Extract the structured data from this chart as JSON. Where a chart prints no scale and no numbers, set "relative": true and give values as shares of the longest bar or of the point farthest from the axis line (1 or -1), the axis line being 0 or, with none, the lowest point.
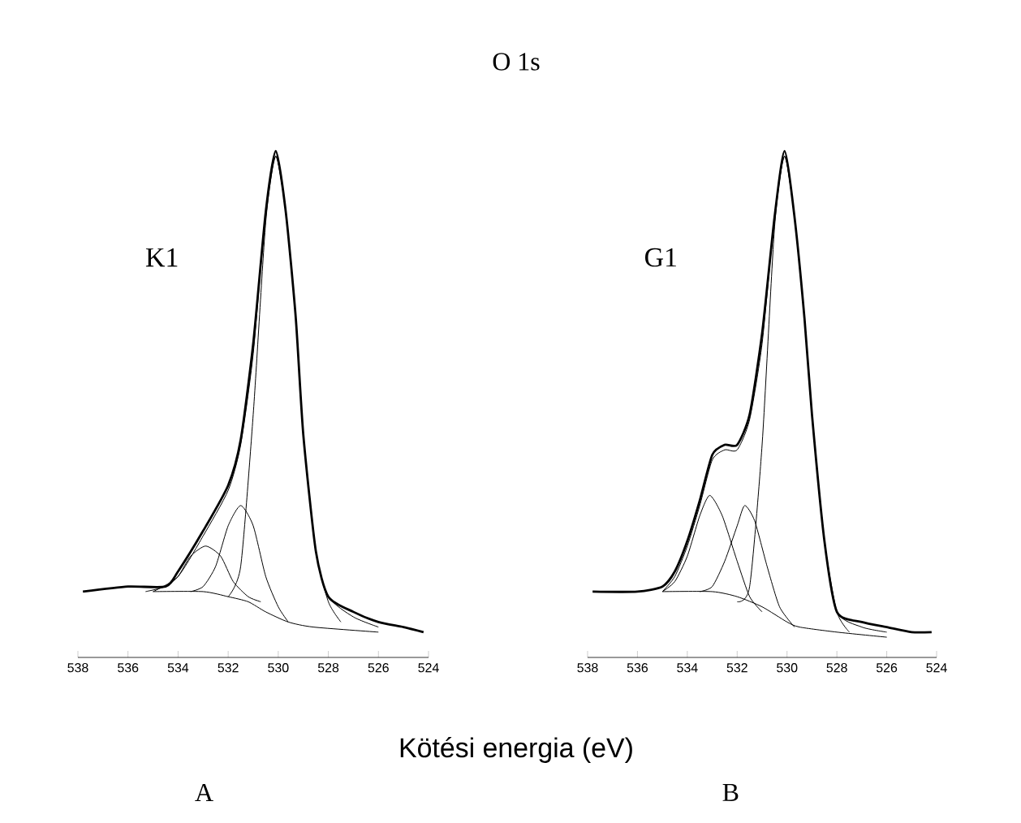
{
  "chart_data": [
    {
      "type": "line",
      "grid": false,
      "annotations": [
        "K1",
        "A"
      ],
      "relative": true,
      "tick_labels": "x",
      "xlim": [
        538,
        524
      ],
      "xticks": [
        538,
        536,
        534,
        532,
        530,
        528,
        526,
        524
      ],
      "series": [
        {
          "color": "#000000",
          "x": [
            537.8,
            536,
            534.5,
            534,
            533,
            532,
            531.5,
            531,
            530.5,
            530.1,
            529.7,
            529.3,
            529,
            528.5,
            528,
            527,
            526,
            525,
            524.2
          ],
          "values": [
            0.13,
            0.14,
            0.14,
            0.17,
            0.25,
            0.34,
            0.43,
            0.62,
            0.88,
            1.0,
            0.88,
            0.67,
            0.44,
            0.21,
            0.12,
            0.09,
            0.07,
            0.06,
            0.05
          ]
        },
        {
          "color": "#000000",
          "x": [
            535,
            534,
            533,
            532,
            531.5,
            531,
            530.5,
            530.1,
            529.7,
            529.3,
            529,
            528.5,
            528,
            527,
            526
          ],
          "values": [
            0.13,
            0.16,
            0.24,
            0.33,
            0.42,
            0.6,
            0.88,
            0.99,
            0.88,
            0.67,
            0.44,
            0.21,
            0.12,
            0.08,
            0.06
          ]
        },
        {
          "color": "#000000",
          "x": [
            535.3,
            534.5,
            534,
            533.5,
            532.9,
            532.3,
            531.8,
            531.2,
            530.7
          ],
          "values": [
            0.13,
            0.14,
            0.16,
            0.2,
            0.22,
            0.2,
            0.15,
            0.12,
            0.11
          ]
        },
        {
          "color": "#000000",
          "x": [
            533.5,
            533,
            532.5,
            532,
            531.5,
            531,
            530.5,
            530,
            529.6
          ],
          "values": [
            0.13,
            0.14,
            0.18,
            0.26,
            0.3,
            0.26,
            0.16,
            0.1,
            0.07
          ]
        },
        {
          "color": "#000000",
          "x": [
            532,
            531.5,
            531,
            530.5,
            530.1,
            529.7,
            529.3,
            529,
            528.5,
            528,
            527.5
          ],
          "values": [
            0.12,
            0.18,
            0.48,
            0.86,
            0.99,
            0.88,
            0.67,
            0.44,
            0.21,
            0.11,
            0.07
          ]
        },
        {
          "color": "#000000",
          "x": [
            535,
            533,
            532,
            531.2,
            530.5,
            529.6,
            528.6,
            526
          ],
          "values": [
            0.13,
            0.13,
            0.12,
            0.11,
            0.09,
            0.07,
            0.06,
            0.05
          ]
        }
      ]
    },
    {
      "type": "line",
      "title": "O 1s",
      "xlabel": "Kötési energia (eV)",
      "grid": false,
      "annotations": [
        "G1",
        "B"
      ],
      "relative": true,
      "tick_labels": "x",
      "xlim": [
        538,
        524
      ],
      "xticks": [
        538,
        536,
        534,
        532,
        530,
        528,
        526,
        524
      ],
      "series": [
        {
          "color": "#000000",
          "x": [
            537.8,
            536,
            535,
            534.5,
            534,
            533.5,
            533,
            532.5,
            532,
            531.5,
            531,
            530.5,
            530.1,
            529.7,
            529.3,
            529,
            528.5,
            528,
            527,
            526,
            525,
            524.2
          ],
          "values": [
            0.13,
            0.13,
            0.14,
            0.17,
            0.23,
            0.31,
            0.4,
            0.42,
            0.42,
            0.48,
            0.64,
            0.87,
            1.0,
            0.87,
            0.67,
            0.48,
            0.23,
            0.09,
            0.07,
            0.06,
            0.05,
            0.05
          ]
        },
        {
          "color": "#000000",
          "x": [
            535,
            534.5,
            534,
            533.5,
            533,
            532.5,
            532,
            531.5,
            531,
            530.5,
            530.1,
            529.7,
            529.3,
            529,
            528.5,
            528,
            527,
            526
          ],
          "values": [
            0.13,
            0.16,
            0.22,
            0.3,
            0.39,
            0.41,
            0.41,
            0.47,
            0.62,
            0.87,
            0.99,
            0.87,
            0.67,
            0.48,
            0.23,
            0.09,
            0.06,
            0.05
          ]
        },
        {
          "color": "#000000",
          "x": [
            535,
            534.5,
            534,
            533.5,
            533.1,
            532.6,
            532,
            531.5,
            531
          ],
          "values": [
            0.13,
            0.15,
            0.2,
            0.28,
            0.32,
            0.28,
            0.19,
            0.12,
            0.09
          ]
        },
        {
          "color": "#000000",
          "x": [
            533.5,
            533,
            532.5,
            532,
            531.7,
            531.3,
            530.8,
            530.3,
            529.7
          ],
          "values": [
            0.13,
            0.14,
            0.19,
            0.26,
            0.3,
            0.27,
            0.18,
            0.1,
            0.06
          ]
        },
        {
          "color": "#000000",
          "x": [
            532,
            531.5,
            531,
            530.5,
            530.1,
            529.7,
            529.3,
            529,
            528.5,
            528,
            527.5
          ],
          "values": [
            0.11,
            0.14,
            0.42,
            0.85,
            0.99,
            0.87,
            0.67,
            0.48,
            0.23,
            0.09,
            0.05
          ]
        },
        {
          "color": "#000000",
          "x": [
            535,
            533,
            532,
            531,
            530,
            529.5,
            528,
            526
          ],
          "values": [
            0.13,
            0.13,
            0.12,
            0.1,
            0.07,
            0.06,
            0.05,
            0.04
          ]
        }
      ]
    }
  ]
}
